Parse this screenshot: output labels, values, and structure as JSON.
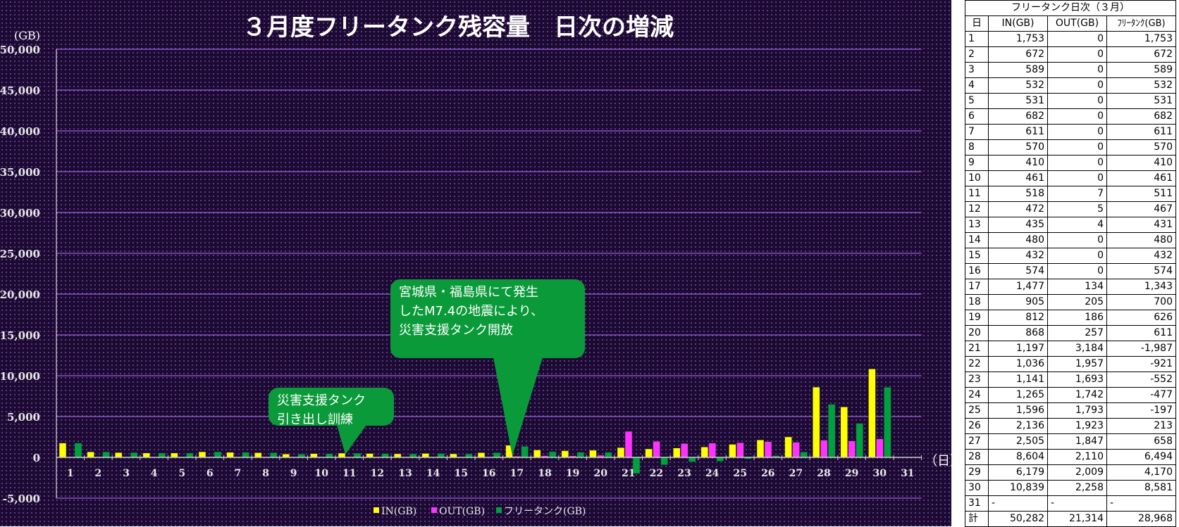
{
  "chart_data": {
    "type": "bar",
    "title": "３月度フリータンク残容量　日次の増減",
    "ylabel": "(GB)",
    "xlabel": "（日）",
    "ylim": [
      -5000,
      50000
    ],
    "yticks": [
      -5000,
      0,
      5000,
      10000,
      15000,
      20000,
      25000,
      30000,
      35000,
      40000,
      45000,
      50000
    ],
    "ytick_labels": [
      "-5,000",
      "0",
      "5,000",
      "10,000",
      "15,000",
      "20,000",
      "25,000",
      "30,000",
      "35,000",
      "40,000",
      "45,000",
      "50,000"
    ],
    "grid": true,
    "legend_position": "bottom",
    "categories": [
      "1",
      "2",
      "3",
      "4",
      "5",
      "6",
      "7",
      "8",
      "9",
      "10",
      "11",
      "12",
      "13",
      "14",
      "15",
      "16",
      "17",
      "18",
      "19",
      "20",
      "21",
      "22",
      "23",
      "24",
      "25",
      "26",
      "27",
      "28",
      "29",
      "30",
      "31"
    ],
    "series": [
      {
        "name": "IN(GB)",
        "color": "#ffff00",
        "values": [
          1753,
          672,
          589,
          532,
          531,
          682,
          611,
          570,
          410,
          461,
          518,
          472,
          435,
          480,
          432,
          574,
          1477,
          905,
          812,
          868,
          1197,
          1036,
          1141,
          1265,
          1596,
          2136,
          2505,
          8604,
          6179,
          10839,
          null
        ]
      },
      {
        "name": "OUT(GB)",
        "color": "#ff33ff",
        "values": [
          0,
          0,
          0,
          0,
          0,
          0,
          0,
          0,
          0,
          0,
          7,
          5,
          4,
          0,
          0,
          0,
          134,
          205,
          186,
          257,
          3184,
          1957,
          1693,
          1742,
          1793,
          1923,
          1847,
          2110,
          2009,
          2258,
          null
        ]
      },
      {
        "name": "フリータンク(GB)",
        "color": "#00a040",
        "values": [
          1753,
          672,
          589,
          532,
          531,
          682,
          611,
          570,
          410,
          461,
          511,
          467,
          431,
          480,
          432,
          574,
          1343,
          700,
          626,
          611,
          -1987,
          -921,
          -552,
          -477,
          -197,
          213,
          658,
          6494,
          4170,
          8581,
          null
        ]
      }
    ],
    "annotations": [
      {
        "day": 17,
        "lines": [
          "宮城県・福島県にて発生",
          "したM7.4の地震により、",
          "災害支援タンク開放"
        ]
      },
      {
        "day": 11,
        "lines": [
          "災害支援タンク",
          "引き出し訓練"
        ]
      }
    ]
  },
  "table": {
    "title": "フリータンク日次（３月）",
    "headers": [
      "日",
      "IN(GB)",
      "OUT(GB)",
      "ﾌﾘｰﾀﾝｸ(GB)"
    ],
    "rows": [
      [
        "1",
        "1,753",
        "0",
        "1,753"
      ],
      [
        "2",
        "672",
        "0",
        "672"
      ],
      [
        "3",
        "589",
        "0",
        "589"
      ],
      [
        "4",
        "532",
        "0",
        "532"
      ],
      [
        "5",
        "531",
        "0",
        "531"
      ],
      [
        "6",
        "682",
        "0",
        "682"
      ],
      [
        "7",
        "611",
        "0",
        "611"
      ],
      [
        "8",
        "570",
        "0",
        "570"
      ],
      [
        "9",
        "410",
        "0",
        "410"
      ],
      [
        "10",
        "461",
        "0",
        "461"
      ],
      [
        "11",
        "518",
        "7",
        "511"
      ],
      [
        "12",
        "472",
        "5",
        "467"
      ],
      [
        "13",
        "435",
        "4",
        "431"
      ],
      [
        "14",
        "480",
        "0",
        "480"
      ],
      [
        "15",
        "432",
        "0",
        "432"
      ],
      [
        "16",
        "574",
        "0",
        "574"
      ],
      [
        "17",
        "1,477",
        "134",
        "1,343"
      ],
      [
        "18",
        "905",
        "205",
        "700"
      ],
      [
        "19",
        "812",
        "186",
        "626"
      ],
      [
        "20",
        "868",
        "257",
        "611"
      ],
      [
        "21",
        "1,197",
        "3,184",
        "-1,987"
      ],
      [
        "22",
        "1,036",
        "1,957",
        "-921"
      ],
      [
        "23",
        "1,141",
        "1,693",
        "-552"
      ],
      [
        "24",
        "1,265",
        "1,742",
        "-477"
      ],
      [
        "25",
        "1,596",
        "1,793",
        "-197"
      ],
      [
        "26",
        "2,136",
        "1,923",
        "213"
      ],
      [
        "27",
        "2,505",
        "1,847",
        "658"
      ],
      [
        "28",
        "8,604",
        "2,110",
        "6,494"
      ],
      [
        "29",
        "6,179",
        "2,009",
        "4,170"
      ],
      [
        "30",
        "10,839",
        "2,258",
        "8,581"
      ],
      [
        "31",
        "-",
        "-",
        "-"
      ]
    ],
    "total": [
      "計",
      "50,282",
      "21,314",
      "28,968"
    ]
  }
}
